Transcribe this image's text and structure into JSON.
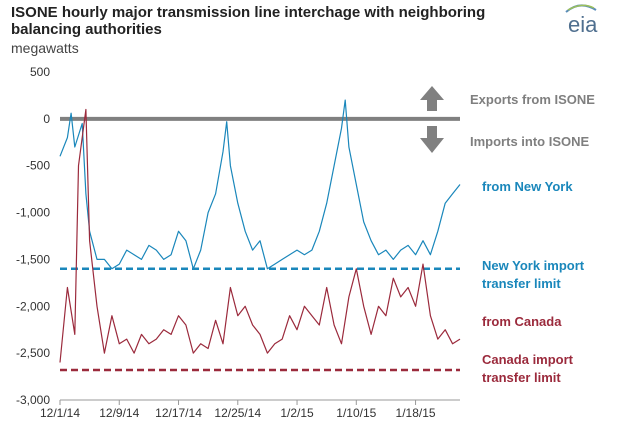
{
  "header": {
    "title": "ISONE hourly major transmission line interchage with neighboring balancing authorities",
    "units": "megawatts",
    "logo_text": "eia"
  },
  "colors": {
    "new_york": "#1a87bb",
    "canada": "#9b2a3c",
    "zero_line": "#808080",
    "arrow": "#808080",
    "ann_gray": "#7f7f7f"
  },
  "annotations": {
    "exports": "Exports from ISONE",
    "imports": "Imports into ISONE",
    "ny_label": "from New York",
    "ny_limit_1": "New York import",
    "ny_limit_2": "transfer limit",
    "ca_label": "from Canada",
    "ca_limit_1": "Canada import",
    "ca_limit_2": "transfer limit"
  },
  "chart_data": {
    "type": "line",
    "x_range_days": [
      0,
      54
    ],
    "xticks": [
      "12/1/14",
      "12/9/14",
      "12/17/14",
      "12/25/14",
      "1/2/15",
      "1/10/15",
      "1/18/15"
    ],
    "ylim": [
      -3000,
      500
    ],
    "yticks": [
      500,
      0,
      -500,
      -1000,
      -1500,
      -2000,
      -2500,
      -3000
    ],
    "ytick_labels": [
      "500",
      "0",
      "-500",
      "-1,000",
      "-1,500",
      "-2,000",
      "-2,500",
      "-3,000"
    ],
    "reference_lines": {
      "ny_import_limit": -1600,
      "canada_import_limit": -2680,
      "zero": 0
    },
    "series": [
      {
        "name": "from New York",
        "points": [
          [
            0,
            -400
          ],
          [
            1,
            -200
          ],
          [
            1.5,
            60
          ],
          [
            2,
            -300
          ],
          [
            3,
            -50
          ],
          [
            3.5,
            -800
          ],
          [
            4,
            -1200
          ],
          [
            5,
            -1500
          ],
          [
            6,
            -1500
          ],
          [
            7,
            -1600
          ],
          [
            8,
            -1550
          ],
          [
            9,
            -1400
          ],
          [
            10,
            -1450
          ],
          [
            11,
            -1500
          ],
          [
            12,
            -1350
          ],
          [
            13,
            -1400
          ],
          [
            14,
            -1500
          ],
          [
            15,
            -1450
          ],
          [
            16,
            -1200
          ],
          [
            17,
            -1300
          ],
          [
            18,
            -1600
          ],
          [
            19,
            -1400
          ],
          [
            20,
            -1000
          ],
          [
            21,
            -800
          ],
          [
            22,
            -350
          ],
          [
            22.5,
            -30
          ],
          [
            23,
            -500
          ],
          [
            24,
            -900
          ],
          [
            25,
            -1200
          ],
          [
            26,
            -1400
          ],
          [
            27,
            -1300
          ],
          [
            28,
            -1600
          ],
          [
            29,
            -1550
          ],
          [
            30,
            -1500
          ],
          [
            31,
            -1450
          ],
          [
            32,
            -1400
          ],
          [
            33,
            -1450
          ],
          [
            34,
            -1400
          ],
          [
            35,
            -1200
          ],
          [
            36,
            -900
          ],
          [
            37,
            -500
          ],
          [
            38,
            -100
          ],
          [
            38.5,
            200
          ],
          [
            39,
            -300
          ],
          [
            40,
            -700
          ],
          [
            41,
            -1100
          ],
          [
            42,
            -1300
          ],
          [
            43,
            -1450
          ],
          [
            44,
            -1400
          ],
          [
            45,
            -1500
          ],
          [
            46,
            -1400
          ],
          [
            47,
            -1350
          ],
          [
            48,
            -1450
          ],
          [
            49,
            -1300
          ],
          [
            50,
            -1450
          ],
          [
            51,
            -1200
          ],
          [
            52,
            -900
          ],
          [
            53,
            -800
          ],
          [
            54,
            -700
          ]
        ]
      },
      {
        "name": "from Canada",
        "points": [
          [
            0,
            -2600
          ],
          [
            1,
            -1800
          ],
          [
            2,
            -2300
          ],
          [
            2.5,
            -500
          ],
          [
            3.5,
            100
          ],
          [
            4,
            -1300
          ],
          [
            5,
            -2000
          ],
          [
            6,
            -2500
          ],
          [
            7,
            -2100
          ],
          [
            8,
            -2400
          ],
          [
            9,
            -2350
          ],
          [
            10,
            -2500
          ],
          [
            11,
            -2300
          ],
          [
            12,
            -2400
          ],
          [
            13,
            -2350
          ],
          [
            14,
            -2250
          ],
          [
            15,
            -2300
          ],
          [
            16,
            -2100
          ],
          [
            17,
            -2200
          ],
          [
            18,
            -2500
          ],
          [
            19,
            -2400
          ],
          [
            20,
            -2450
          ],
          [
            21,
            -2150
          ],
          [
            22,
            -2400
          ],
          [
            23,
            -1800
          ],
          [
            24,
            -2100
          ],
          [
            25,
            -2000
          ],
          [
            26,
            -2200
          ],
          [
            27,
            -2300
          ],
          [
            28,
            -2500
          ],
          [
            29,
            -2400
          ],
          [
            30,
            -2350
          ],
          [
            31,
            -2100
          ],
          [
            32,
            -2250
          ],
          [
            33,
            -2000
          ],
          [
            34,
            -2100
          ],
          [
            35,
            -2200
          ],
          [
            36,
            -1800
          ],
          [
            37,
            -2200
          ],
          [
            38,
            -2400
          ],
          [
            39,
            -1900
          ],
          [
            40,
            -1600
          ],
          [
            41,
            -2000
          ],
          [
            42,
            -2300
          ],
          [
            43,
            -2000
          ],
          [
            44,
            -2100
          ],
          [
            45,
            -1700
          ],
          [
            46,
            -1900
          ],
          [
            47,
            -1800
          ],
          [
            48,
            -2000
          ],
          [
            49,
            -1550
          ],
          [
            50,
            -2100
          ],
          [
            51,
            -2350
          ],
          [
            52,
            -2250
          ],
          [
            53,
            -2400
          ],
          [
            54,
            -2350
          ]
        ]
      }
    ]
  }
}
